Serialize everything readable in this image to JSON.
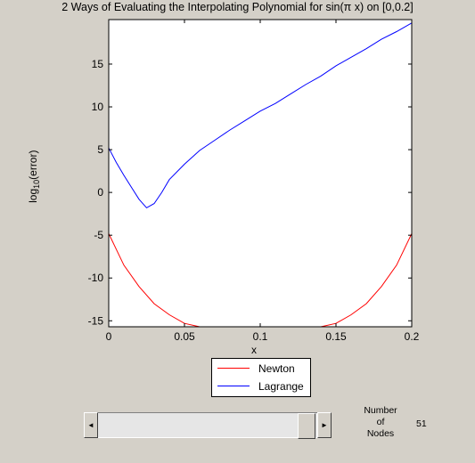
{
  "title": "2 Ways of Evaluating the Interpolating Polynomial for sin(π x) on [0,0.2]",
  "axes": {
    "xlabel": "x",
    "ylabel": "log",
    "ylabel_sub": "10",
    "ylabel_rest": "(error)"
  },
  "legend": {
    "items": [
      {
        "label": "Newton",
        "color": "#ff0000"
      },
      {
        "label": "Lagrange",
        "color": "#0000ff"
      }
    ]
  },
  "controls": {
    "nodes_label_line1": "Number",
    "nodes_label_line2": "of",
    "nodes_label_line3": "Nodes",
    "nodes_value": "51",
    "left_arrow": "◄",
    "right_arrow": "►"
  },
  "chart_data": {
    "type": "line",
    "title": "2 Ways of Evaluating the Interpolating Polynomial for sin(π x) on [0,0.2]",
    "xlabel": "x",
    "ylabel": "log10(error)",
    "xlim": [
      0,
      0.2
    ],
    "ylim": [
      -15.7,
      20.2
    ],
    "xticks": [
      0,
      0.05,
      0.1,
      0.15,
      0.2
    ],
    "xtick_labels": [
      "0",
      "0.05",
      "0.1",
      "0.15",
      "0.2"
    ],
    "yticks": [
      -15,
      -10,
      -5,
      0,
      5,
      10,
      15
    ],
    "ytick_labels": [
      "-15",
      "-10",
      "-5",
      "0",
      "5",
      "10",
      "15"
    ],
    "legend_position": "below",
    "series": [
      {
        "name": "Newton",
        "color": "#ff0000",
        "x": [
          0,
          0.01,
          0.02,
          0.03,
          0.04,
          0.05,
          0.06,
          0.08,
          0.1,
          0.12,
          0.14,
          0.15,
          0.16,
          0.17,
          0.18,
          0.19,
          0.2
        ],
        "y": [
          -4.8,
          -8.5,
          -11.0,
          -13.0,
          -14.3,
          -15.3,
          -15.7,
          -15.7,
          -15.7,
          -15.7,
          -15.7,
          -15.3,
          -14.3,
          -13.0,
          -11.0,
          -8.5,
          -4.8
        ]
      },
      {
        "name": "Lagrange",
        "color": "#0000ff",
        "x": [
          0,
          0.005,
          0.01,
          0.015,
          0.02,
          0.025,
          0.03,
          0.035,
          0.04,
          0.05,
          0.06,
          0.07,
          0.08,
          0.09,
          0.1,
          0.11,
          0.12,
          0.13,
          0.14,
          0.15,
          0.16,
          0.17,
          0.18,
          0.19,
          0.2
        ],
        "y": [
          5.2,
          3.5,
          2.0,
          0.6,
          -0.8,
          -1.8,
          -1.3,
          0.0,
          1.5,
          3.3,
          4.9,
          6.1,
          7.3,
          8.4,
          9.5,
          10.4,
          11.5,
          12.6,
          13.6,
          14.8,
          15.8,
          16.8,
          17.9,
          18.8,
          19.8
        ]
      }
    ]
  }
}
